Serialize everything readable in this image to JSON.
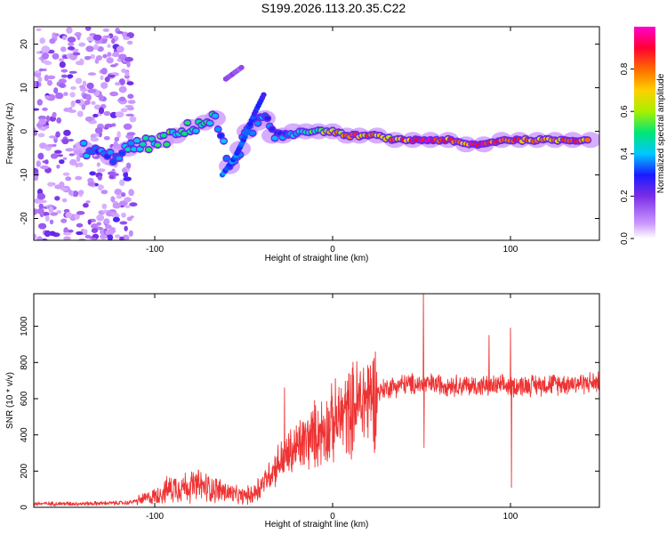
{
  "title": "S199.2026.113.20.35.C22",
  "chart_data": [
    {
      "type": "heatmap",
      "name": "spectrogram",
      "xlabel": "Height of straight line (km)",
      "ylabel": "Frequency (Hz)",
      "xlim": [
        -168,
        150
      ],
      "ylim": [
        -25,
        24
      ],
      "xticks": [
        -100,
        0,
        100
      ],
      "xtick_labels": [
        "-100",
        "0",
        "100"
      ],
      "yticks": [
        -20,
        -10,
        0,
        10,
        20
      ],
      "ytick_labels": [
        "-20",
        "-10",
        "0",
        "10",
        "20"
      ],
      "colorbar": {
        "label": "Normalized spectral amplitude",
        "range": [
          0,
          1
        ],
        "ticks": [
          0.0,
          0.2,
          0.4,
          0.6,
          0.8
        ],
        "tick_labels": [
          "0.0",
          "0.2",
          "0.4",
          "0.6",
          "0.8"
        ],
        "colors": [
          "#ffffff",
          "#cc99ff",
          "#7a2ee6",
          "#1a1aff",
          "#00c8ff",
          "#00e676",
          "#a8f000",
          "#ffd000",
          "#ff6a00",
          "#ff0033",
          "#ff00cc"
        ]
      },
      "ridge_points": [
        {
          "x": -140,
          "y": -4,
          "a": 0.38
        },
        {
          "x": -125,
          "y": -6,
          "a": 0.34
        },
        {
          "x": -115,
          "y": -4,
          "a": 0.4
        },
        {
          "x": -105,
          "y": -3,
          "a": 0.45
        },
        {
          "x": -95,
          "y": -2,
          "a": 0.5
        },
        {
          "x": -88,
          "y": -1,
          "a": 0.48
        },
        {
          "x": -80,
          "y": 1,
          "a": 0.45
        },
        {
          "x": -72,
          "y": 2,
          "a": 0.5
        },
        {
          "x": -66,
          "y": 3,
          "a": 0.42
        },
        {
          "x": -58,
          "y": -8,
          "a": 0.32
        },
        {
          "x": -52,
          "y": -4,
          "a": 0.34
        },
        {
          "x": -48,
          "y": 0,
          "a": 0.36
        },
        {
          "x": -42,
          "y": 2,
          "a": 0.38
        },
        {
          "x": -38,
          "y": 3,
          "a": 0.36
        },
        {
          "x": -34,
          "y": -1,
          "a": 0.34
        },
        {
          "x": -28,
          "y": -1,
          "a": 0.36
        },
        {
          "x": -22,
          "y": 0,
          "a": 0.38
        },
        {
          "x": -15,
          "y": 0,
          "a": 0.45
        },
        {
          "x": -8,
          "y": 0,
          "a": 0.55
        },
        {
          "x": 0,
          "y": 0,
          "a": 0.68
        },
        {
          "x": 8,
          "y": -1,
          "a": 0.75
        },
        {
          "x": 15,
          "y": -1,
          "a": 0.8
        },
        {
          "x": 25,
          "y": -1,
          "a": 0.72
        },
        {
          "x": 35,
          "y": -2,
          "a": 0.78
        },
        {
          "x": 45,
          "y": -2,
          "a": 0.82
        },
        {
          "x": 55,
          "y": -2,
          "a": 0.88
        },
        {
          "x": 65,
          "y": -2,
          "a": 0.8
        },
        {
          "x": 75,
          "y": -3,
          "a": 0.85
        },
        {
          "x": 85,
          "y": -3,
          "a": 0.88
        },
        {
          "x": 95,
          "y": -2,
          "a": 0.8
        },
        {
          "x": 105,
          "y": -2,
          "a": 0.85
        },
        {
          "x": 115,
          "y": -2,
          "a": 0.86
        },
        {
          "x": 125,
          "y": -2,
          "a": 0.8
        },
        {
          "x": 135,
          "y": -2,
          "a": 0.85
        },
        {
          "x": 145,
          "y": -2,
          "a": 0.8
        }
      ],
      "branch_points": [
        {
          "x": -62,
          "y": -10,
          "a": 0.36
        },
        {
          "x": -55,
          "y": -6,
          "a": 0.34
        },
        {
          "x": -50,
          "y": -2,
          "a": 0.34
        },
        {
          "x": -44,
          "y": 4,
          "a": 0.3
        },
        {
          "x": -38,
          "y": 9,
          "a": 0.28
        },
        {
          "x": -60,
          "y": 12,
          "a": 0.18
        },
        {
          "x": -50,
          "y": 15,
          "a": 0.15
        }
      ]
    },
    {
      "type": "line",
      "name": "snr",
      "xlabel": "Height of straight line (km)",
      "ylabel": "SNR (10 * v/v)",
      "xlim": [
        -168,
        150
      ],
      "ylim": [
        0,
        1180
      ],
      "xticks": [
        -100,
        0,
        100
      ],
      "xtick_labels": [
        "-100",
        "0",
        "100"
      ],
      "yticks": [
        0,
        200,
        400,
        600,
        800,
        1000
      ],
      "ytick_labels": [
        "0",
        "200",
        "400",
        "600",
        "800",
        "1000"
      ],
      "color": "#ee3333",
      "trend": [
        {
          "x": -168,
          "y": 20
        },
        {
          "x": -140,
          "y": 20
        },
        {
          "x": -115,
          "y": 25
        },
        {
          "x": -100,
          "y": 60
        },
        {
          "x": -90,
          "y": 110
        },
        {
          "x": -75,
          "y": 120
        },
        {
          "x": -62,
          "y": 90
        },
        {
          "x": -52,
          "y": 60
        },
        {
          "x": -45,
          "y": 70
        },
        {
          "x": -38,
          "y": 150
        },
        {
          "x": -30,
          "y": 250
        },
        {
          "x": -20,
          "y": 330
        },
        {
          "x": -10,
          "y": 400
        },
        {
          "x": 0,
          "y": 460
        },
        {
          "x": 10,
          "y": 540
        },
        {
          "x": 20,
          "y": 610
        },
        {
          "x": 30,
          "y": 660
        },
        {
          "x": 40,
          "y": 680
        },
        {
          "x": 60,
          "y": 680
        },
        {
          "x": 80,
          "y": 670
        },
        {
          "x": 100,
          "y": 670
        },
        {
          "x": 120,
          "y": 680
        },
        {
          "x": 150,
          "y": 690
        }
      ],
      "spikes": [
        {
          "x": -27,
          "y": 660
        },
        {
          "x": 51,
          "y": 1180
        },
        {
          "x": 51.5,
          "y": 330
        },
        {
          "x": 88,
          "y": 950
        },
        {
          "x": 100,
          "y": 990
        },
        {
          "x": 100.5,
          "y": 110
        }
      ]
    }
  ]
}
